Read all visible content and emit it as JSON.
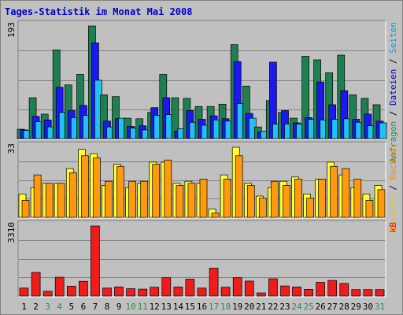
{
  "chart_data": {
    "type": "bar",
    "title": "Tages-Statistik im Monat Mai 2008",
    "categories": [
      "1",
      "2",
      "3",
      "4",
      "5",
      "6",
      "7",
      "8",
      "9",
      "10",
      "11",
      "12",
      "13",
      "14",
      "15",
      "16",
      "17",
      "18",
      "19",
      "20",
      "21",
      "22",
      "23",
      "24",
      "25",
      "26",
      "27",
      "28",
      "29",
      "30",
      "31"
    ],
    "weekend_color": "#2e8b57",
    "weekend_days": [
      "3",
      "4",
      "10",
      "11",
      "17",
      "18",
      "24",
      "25",
      "31"
    ],
    "panels": [
      {
        "name": "top",
        "max_label": "193",
        "ylim": [
          0,
          193
        ],
        "right_labels": [
          {
            "text": "Anfragen",
            "color": "#2e8b57"
          },
          {
            "text": " / ",
            "color": "#000000"
          },
          {
            "text": "Dateien",
            "color": "#0000cc"
          },
          {
            "text": " / ",
            "color": "#000000"
          },
          {
            "text": "Seiten",
            "color": "#00a0dd"
          }
        ],
        "series": [
          {
            "name": "Anfragen",
            "color": "#1e8050",
            "values": [
              16,
              70,
              42,
              152,
              92,
              110,
              193,
              75,
              72,
              35,
              34,
              45,
              110,
              70,
              69,
              55,
              55,
              59,
              161,
              90,
              20,
              65,
              45,
              35,
              141,
              135,
              113,
              143,
              75,
              69,
              58
            ]
          },
          {
            "name": "Dateien",
            "color": "#1a1af0",
            "values": [
              15,
              38,
              32,
              88,
              48,
              57,
              164,
              30,
              34,
              21,
              22,
              53,
              70,
              13,
              48,
              33,
              39,
              34,
              132,
              43,
              11,
              131,
              48,
              27,
              36,
              97,
              58,
              82,
              33,
              42,
              30
            ]
          },
          {
            "name": "Seiten",
            "color": "#22c0f4",
            "values": [
              14,
              29,
              20,
              45,
              36,
              40,
              100,
              20,
              35,
              18,
              15,
              40,
              41,
              17,
              28,
              23,
              32,
              30,
              60,
              35,
              13,
              25,
              25,
              25,
              33,
              32,
              33,
              34,
              28,
              22,
              27
            ]
          }
        ]
      },
      {
        "name": "middle",
        "max_label": "33",
        "ylim": [
          0,
          33
        ],
        "right_labels": [
          {
            "text": "Besuche",
            "color": "#e8c800"
          },
          {
            "text": " / ",
            "color": "#000000"
          },
          {
            "text": "Rechner",
            "color": "#ff8c00"
          }
        ],
        "series": [
          {
            "name": "Besuche",
            "color": "#ffff30",
            "values": [
              11,
              14,
              16,
              16,
              23,
              32,
              30,
              15,
              25,
              14,
              16,
              26,
              26,
              16,
              17,
              16,
              4,
              20,
              33,
              16,
              10,
              14,
              17,
              19,
              11,
              18,
              26,
              20,
              14,
              11,
              15
            ]
          },
          {
            "name": "Rechner",
            "color": "#ff9a10",
            "values": [
              8,
              20,
              16,
              16,
              21,
              29,
              28,
              17,
              24,
              17,
              17,
              25,
              27,
              15,
              16,
              18,
              2,
              18,
              29,
              15,
              9,
              17,
              15,
              18,
              9,
              18,
              24,
              23,
              18,
              8,
              13
            ]
          }
        ]
      },
      {
        "name": "bottom",
        "max_label": "3310",
        "ylim": [
          0,
          3310
        ],
        "right_labels": [
          {
            "text": "kB",
            "color": "#ff0000"
          }
        ],
        "series": [
          {
            "name": "kB",
            "color": "#ee1c1c",
            "values": [
              380,
              1120,
              230,
              890,
              470,
              700,
              3310,
              380,
              430,
              350,
              330,
              420,
              870,
              430,
              800,
              380,
              1320,
              420,
              870,
              710,
              150,
              820,
              480,
              430,
              320,
              650,
              740,
              600,
              310,
              310,
              310
            ]
          }
        ]
      }
    ]
  }
}
